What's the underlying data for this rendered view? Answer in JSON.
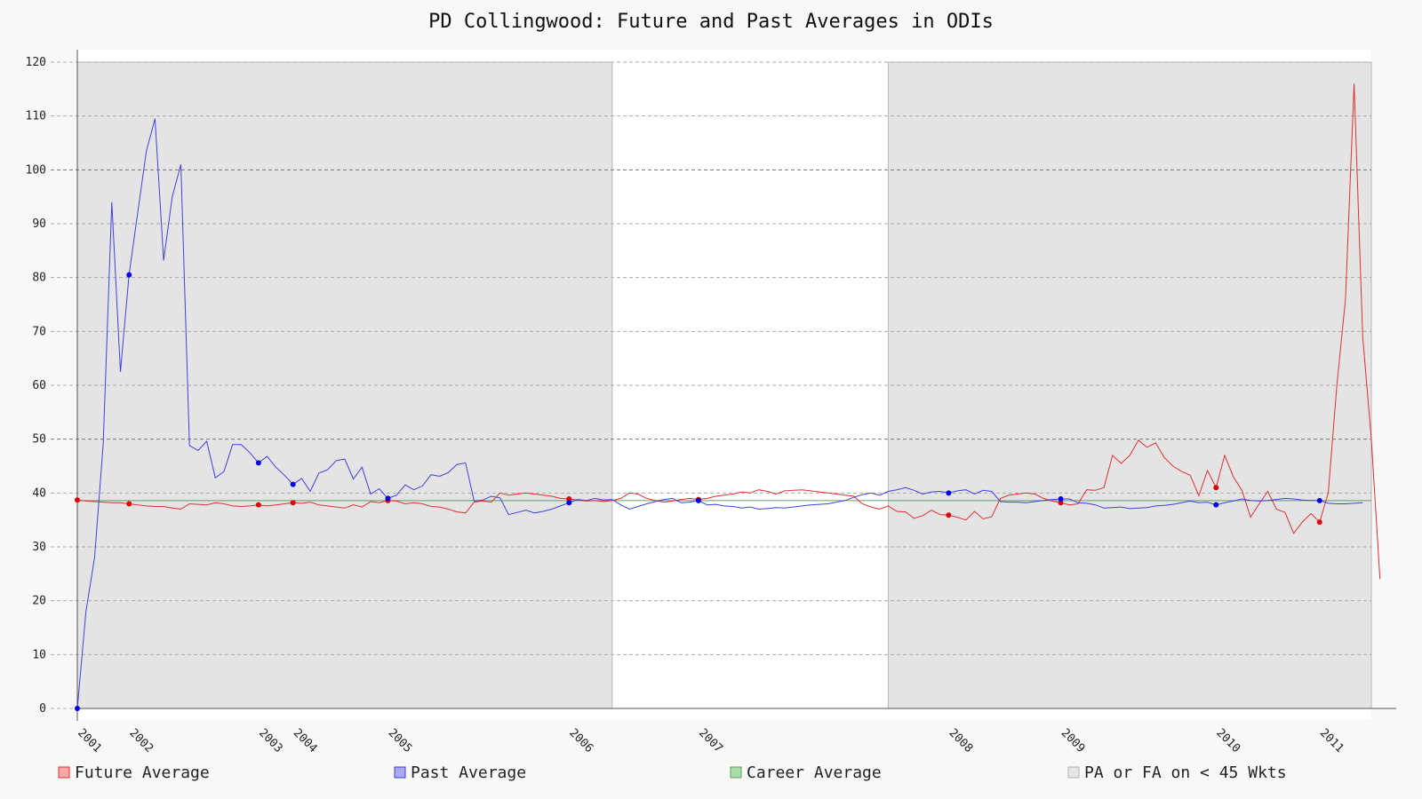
{
  "chart_data": {
    "type": "line",
    "title": "PD Collingwood: Future and Past Averages in ODIs",
    "xlabel": "",
    "ylabel": "",
    "ylim": [
      0,
      120
    ],
    "yticks": [
      0,
      10,
      20,
      30,
      40,
      50,
      60,
      70,
      80,
      90,
      100,
      110,
      120
    ],
    "xlim": [
      0,
      150
    ],
    "x_tick_labels": [
      {
        "x": 0,
        "label": "2001"
      },
      {
        "x": 6,
        "label": "2002"
      },
      {
        "x": 21,
        "label": "2003"
      },
      {
        "x": 25,
        "label": "2004"
      },
      {
        "x": 36,
        "label": "2005"
      },
      {
        "x": 57,
        "label": "2006"
      },
      {
        "x": 72,
        "label": "2007"
      },
      {
        "x": 101,
        "label": "2008"
      },
      {
        "x": 114,
        "label": "2009"
      },
      {
        "x": 132,
        "label": "2010"
      },
      {
        "x": 144,
        "label": "2011"
      }
    ],
    "grid": true,
    "legend_position": "bottom",
    "career_average": 38.6,
    "shaded_regions": [
      {
        "label": "PA or FA on < 45 Wkts",
        "start": 0,
        "end": 62
      },
      {
        "label": "PA or FA on < 45 Wkts",
        "start": 94,
        "end": 150
      }
    ],
    "series": [
      {
        "name": "Future Average",
        "color": "#e03030",
        "marker_color": "#e00000",
        "values": [
          38.7,
          38.5,
          38.4,
          38.3,
          38.2,
          38.2,
          38.0,
          37.8,
          37.6,
          37.5,
          37.5,
          37.2,
          37.0,
          38.0,
          37.9,
          37.8,
          38.2,
          38.0,
          37.6,
          37.5,
          37.6,
          37.8,
          37.6,
          37.8,
          38.0,
          38.2,
          38.1,
          38.3,
          37.8,
          37.6,
          37.4,
          37.2,
          37.8,
          37.4,
          38.4,
          38.2,
          38.6,
          38.5,
          38.0,
          38.2,
          38.0,
          37.5,
          37.4,
          37.0,
          36.5,
          36.3,
          38.3,
          38.5,
          38.3,
          40.0,
          39.6,
          39.8,
          40.0,
          39.8,
          39.6,
          39.4,
          39.0,
          38.9,
          38.7,
          38.5,
          38.6,
          38.4,
          38.6,
          39.0,
          40.0,
          39.8,
          39.0,
          38.6,
          38.3,
          38.5,
          38.8,
          39.0,
          38.8,
          39.0,
          39.4,
          39.6,
          39.8,
          40.2,
          40.0,
          40.6,
          40.3,
          39.8,
          40.4,
          40.5,
          40.6,
          40.4,
          40.2,
          40.0,
          39.8,
          39.6,
          39.4,
          38.0,
          37.4,
          37.0,
          37.6,
          36.6,
          36.5,
          35.3,
          35.8,
          36.8,
          36.0,
          35.9,
          35.5,
          35.0,
          36.6,
          35.2,
          35.6,
          39.0,
          39.6,
          39.8,
          40.0,
          39.8,
          39.0,
          38.5,
          38.2,
          37.8,
          38.0,
          40.6,
          40.5,
          41.0,
          47.0,
          45.5,
          47.0,
          49.8,
          48.5,
          49.3,
          46.6,
          45.0,
          44.0,
          43.3,
          39.5,
          44.2,
          41.0,
          47.0,
          43.0,
          40.5,
          35.5,
          38.0,
          40.3,
          37.0,
          36.4,
          32.5,
          34.6,
          36.2,
          34.6,
          40.0,
          60.0,
          76.0,
          116.0,
          69.0,
          50.0,
          24.0
        ],
        "highlighted_points": [
          0,
          6,
          21,
          25,
          36,
          57,
          72,
          101,
          114,
          132,
          144
        ]
      },
      {
        "name": "Past Average",
        "color": "#4040e0",
        "marker_color": "#0000ee",
        "values": [
          0.0,
          18.0,
          28.0,
          49.0,
          94.0,
          62.5,
          80.5,
          92.0,
          103.5,
          109.5,
          83.2,
          95.0,
          101.0,
          48.8,
          47.9,
          49.6,
          42.8,
          44.0,
          49.0,
          49.0,
          47.5,
          45.6,
          46.8,
          44.8,
          43.3,
          41.6,
          42.7,
          40.3,
          43.7,
          44.3,
          46.0,
          46.3,
          42.6,
          44.8,
          39.8,
          40.8,
          39.0,
          39.6,
          41.5,
          40.6,
          41.3,
          43.4,
          43.1,
          43.8,
          45.3,
          45.6,
          38.5,
          38.7,
          39.4,
          39.1,
          36.0,
          36.4,
          36.8,
          36.3,
          36.6,
          37.0,
          37.6,
          38.2,
          38.8,
          38.6,
          39.0,
          38.7,
          38.8,
          37.8,
          37.0,
          37.5,
          38.0,
          38.4,
          38.8,
          39.0,
          38.2,
          38.3,
          38.6,
          37.8,
          37.9,
          37.6,
          37.5,
          37.2,
          37.4,
          37.0,
          37.1,
          37.3,
          37.2,
          37.4,
          37.6,
          37.8,
          37.9,
          38.0,
          38.3,
          38.6,
          39.2,
          39.7,
          40.0,
          39.6,
          40.3,
          40.6,
          41.0,
          40.5,
          39.8,
          40.2,
          40.3,
          40.0,
          40.4,
          40.6,
          39.8,
          40.5,
          40.3,
          38.4,
          38.3,
          38.3,
          38.2,
          38.4,
          38.6,
          38.8,
          38.9,
          38.9,
          38.2,
          38.1,
          37.8,
          37.2,
          37.3,
          37.4,
          37.1,
          37.2,
          37.3,
          37.6,
          37.7,
          37.9,
          38.2,
          38.5,
          38.2,
          38.3,
          37.8,
          38.2,
          38.5,
          38.9,
          38.6,
          38.5,
          38.6,
          38.8,
          39.0,
          38.9,
          38.7,
          38.6,
          38.6,
          38.1,
          38.0,
          38.0,
          38.1,
          38.2
        ],
        "highlighted_points": [
          0,
          6,
          21,
          25,
          36,
          57,
          72,
          101,
          114,
          132,
          144
        ]
      },
      {
        "name": "Career Average",
        "color": "#60a060",
        "values": []
      }
    ],
    "legend": [
      {
        "label": "Future Average",
        "swatch_fill": "#f4a8a8",
        "swatch_stroke": "#e03030"
      },
      {
        "label": "Past Average",
        "swatch_fill": "#a8a8f4",
        "swatch_stroke": "#4040e0"
      },
      {
        "label": "Career Average",
        "swatch_fill": "#a8dca8",
        "swatch_stroke": "#60a060"
      },
      {
        "label": "PA or FA on < 45 Wkts",
        "swatch_fill": "#e4e4e4",
        "swatch_stroke": "#b0b0b0"
      }
    ]
  }
}
